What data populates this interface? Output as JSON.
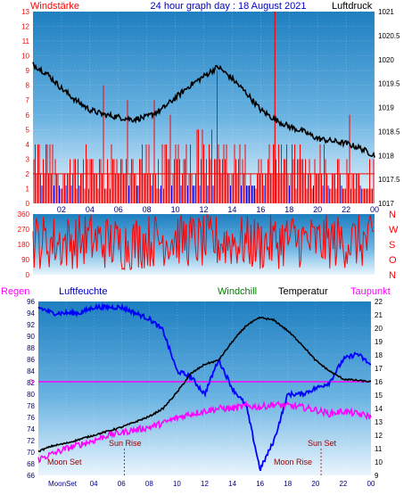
{
  "header": {
    "left_label": "Windstärke",
    "title": "24 hour graph day : 18 August 2021",
    "right_label": "Luftdruck"
  },
  "legend": {
    "regen": "Regen",
    "luftfeuchte": "Luftfeuchte",
    "windchill": "Windchill",
    "temperatur": "Temperatur",
    "taupunkt": "Taupunkt"
  },
  "colors": {
    "wind": "#ff0000",
    "direction": "#ff0000",
    "pressure": "#000000",
    "humidity": "#0000ff",
    "temperature": "#000000",
    "dewpoint": "#ff00ff",
    "windchill": "#008000",
    "rain": "#ff00ff",
    "calm_bars": "#0000ff"
  },
  "panel_top": {
    "wind_axis_ticks": [
      "0",
      "1",
      "2",
      "3",
      "4",
      "5",
      "6",
      "7",
      "8",
      "9",
      "10",
      "11",
      "12",
      "13"
    ],
    "pressure_axis_ticks": [
      "1017",
      "1017.5",
      "1018",
      "1018.5",
      "1019",
      "1019.5",
      "1020",
      "1020.5",
      "1021"
    ]
  },
  "panel_mid": {
    "dir_axis_ticks": [
      "0",
      "90",
      "180",
      "270",
      "360"
    ],
    "compass": [
      "N",
      "W",
      "S",
      "O",
      "N"
    ]
  },
  "panel_bottom": {
    "humidity_axis_ticks": [
      "66",
      "68",
      "70",
      "72",
      "74",
      "76",
      "78",
      "80",
      "82",
      "84",
      "86",
      "88",
      "90",
      "92",
      "94",
      "96"
    ],
    "temperature_axis_ticks": [
      "9",
      "10",
      "11",
      "12",
      "13",
      "14",
      "15",
      "16",
      "17",
      "18",
      "19",
      "20",
      "21",
      "22"
    ],
    "rain_zero": "0",
    "events": {
      "sun_rise": "Sun Rise",
      "sun_set": "Sun Set",
      "moon_set": "Moon Set",
      "moon_rise": "Moon Rise",
      "moonset_bottom": "MoonSet"
    }
  },
  "x_axis_labels": [
    "02",
    "04",
    "06",
    "08",
    "10",
    "12",
    "14",
    "16",
    "18",
    "20",
    "22",
    "00"
  ],
  "bottom_x_axis_labels": [
    "",
    "04",
    "06",
    "08",
    "10",
    "12",
    "14",
    "16",
    "18",
    "20",
    "22",
    "00"
  ],
  "chart_data": [
    {
      "type": "line",
      "title": "24 hour graph day : 18 August 2021",
      "series": [
        {
          "name": "Luftdruck",
          "axis": "right",
          "x_hours": [
            0,
            1,
            2,
            3,
            4,
            5,
            6,
            7,
            8,
            9,
            10,
            11,
            12,
            13,
            14,
            15,
            16,
            17,
            18,
            19,
            20,
            21,
            22,
            23,
            24
          ],
          "values": [
            1019.9,
            1019.7,
            1019.4,
            1019.15,
            1018.95,
            1018.85,
            1018.8,
            1018.75,
            1018.8,
            1018.95,
            1019.2,
            1019.45,
            1019.65,
            1019.85,
            1019.6,
            1019.3,
            1018.95,
            1018.75,
            1018.6,
            1018.5,
            1018.35,
            1018.3,
            1018.25,
            1018.15,
            1018.0
          ]
        },
        {
          "name": "Windstärke",
          "axis": "left",
          "x_hours": [
            0,
            1,
            2,
            3,
            4,
            5,
            6,
            7,
            8,
            9,
            10,
            11,
            12,
            13,
            14,
            15,
            16,
            17,
            18,
            19,
            20,
            21,
            22,
            23,
            24
          ],
          "values": [
            3,
            3,
            2,
            2,
            3,
            2,
            3,
            2,
            3,
            2,
            3,
            3,
            4,
            3,
            3,
            3,
            2,
            3,
            3,
            2,
            3,
            2,
            2,
            2,
            2
          ]
        }
      ],
      "y_left_lim": [
        0,
        13
      ],
      "y_right_lim": [
        1017,
        1021
      ],
      "xlim": [
        0,
        24
      ]
    },
    {
      "type": "line",
      "title": "",
      "series": [
        {
          "name": "Windrichtung",
          "x_hours": [
            0,
            2,
            4,
            6,
            8,
            10,
            12,
            14,
            16,
            18,
            20,
            22,
            24
          ],
          "values": [
            200,
            190,
            210,
            180,
            200,
            220,
            190,
            200,
            180,
            210,
            190,
            200,
            190
          ]
        }
      ],
      "ylim": [
        0,
        360
      ]
    },
    {
      "type": "line",
      "title": "",
      "series": [
        {
          "name": "Luftfeuchte",
          "axis": "left",
          "x_hours": [
            0,
            1,
            2,
            3,
            4,
            5,
            6,
            7,
            8,
            9,
            10,
            11,
            12,
            13,
            14,
            15,
            16,
            17,
            18,
            19,
            20,
            21,
            22,
            23,
            24
          ],
          "values": [
            95,
            94,
            94,
            94,
            95,
            95,
            95,
            94,
            93,
            91,
            84,
            83,
            80,
            86,
            81,
            78,
            67,
            72,
            80,
            80,
            81,
            82,
            86,
            87,
            85
          ]
        },
        {
          "name": "Temperatur",
          "axis": "right",
          "x_hours": [
            0,
            1,
            2,
            3,
            4,
            5,
            6,
            7,
            8,
            9,
            10,
            11,
            12,
            13,
            14,
            15,
            16,
            17,
            18,
            19,
            20,
            21,
            22,
            23,
            24
          ],
          "values": [
            10.8,
            11.2,
            11.4,
            11.7,
            12.0,
            12.3,
            12.6,
            13.0,
            13.4,
            14.0,
            15.2,
            16.6,
            17.3,
            17.6,
            19.0,
            20.2,
            20.8,
            20.6,
            19.8,
            18.8,
            17.6,
            16.8,
            16.2,
            16.1,
            16.0
          ]
        },
        {
          "name": "Taupunkt",
          "axis": "right",
          "x_hours": [
            0,
            1,
            2,
            3,
            4,
            5,
            6,
            7,
            8,
            9,
            10,
            11,
            12,
            13,
            14,
            15,
            16,
            17,
            18,
            19,
            20,
            21,
            22,
            23,
            24
          ],
          "values": [
            10.2,
            10.6,
            11.0,
            11.3,
            11.6,
            12.0,
            12.2,
            12.4,
            12.6,
            12.9,
            13.3,
            13.6,
            13.8,
            14.0,
            14.0,
            14.2,
            14.1,
            14.3,
            14.2,
            14.1,
            13.9,
            13.6,
            13.8,
            13.6,
            13.4
          ]
        },
        {
          "name": "Regen",
          "axis": "rain",
          "x_hours": [
            0,
            24
          ],
          "values": [
            0,
            0
          ]
        }
      ],
      "y_left_lim": [
        66,
        96
      ],
      "y_right_lim": [
        9,
        22
      ],
      "xlim": [
        0,
        24
      ]
    }
  ]
}
